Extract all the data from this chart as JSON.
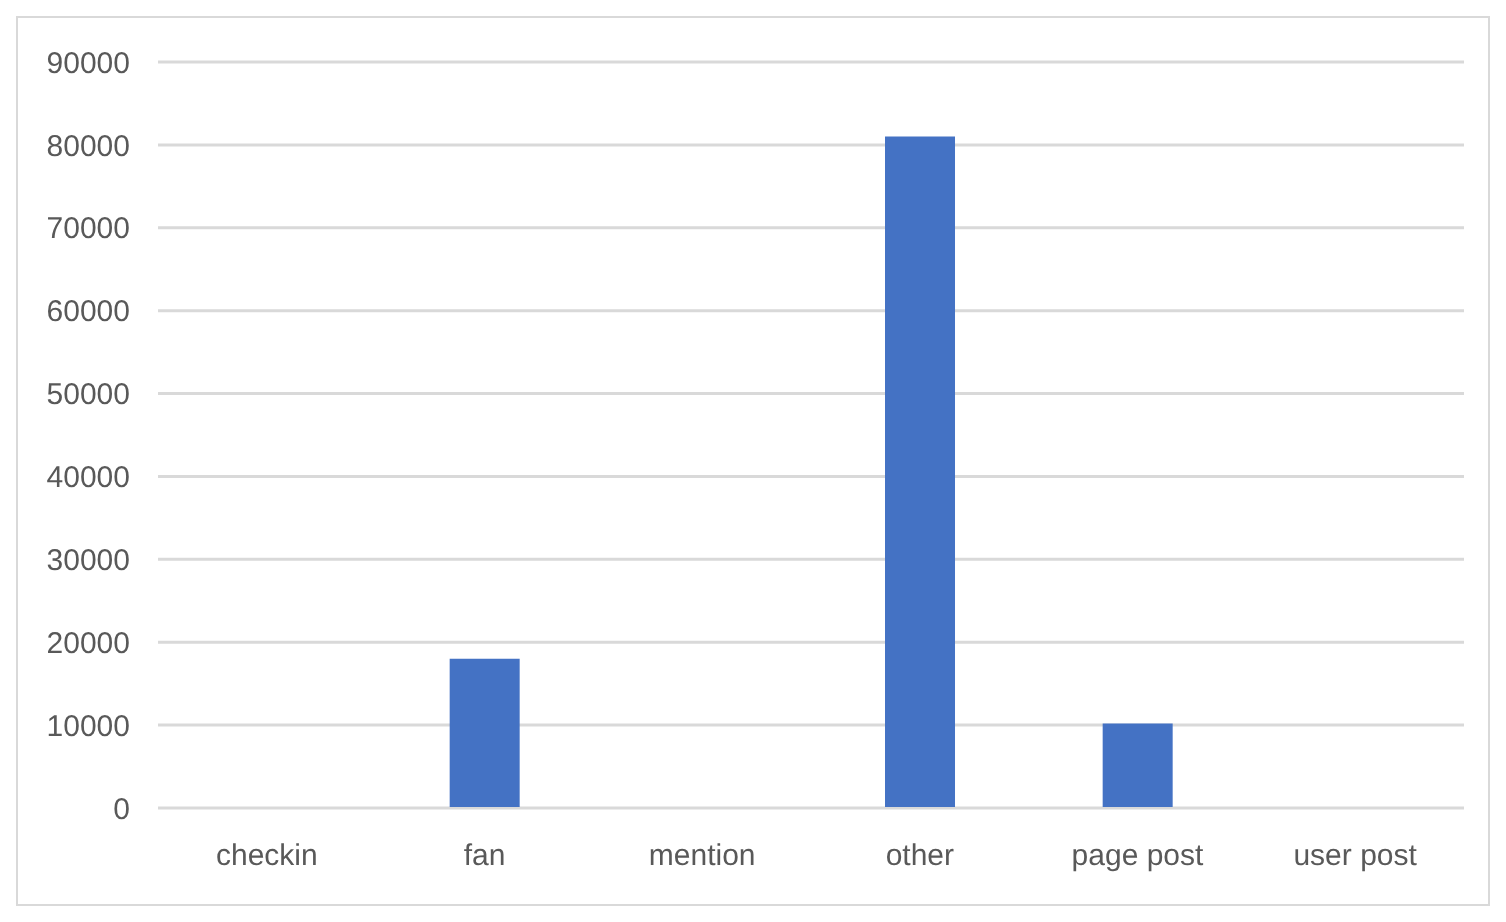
{
  "chart_data": {
    "type": "bar",
    "categories": [
      "checkin",
      "fan",
      "mention",
      "other",
      "page post",
      "user post"
    ],
    "values": [
      0,
      18000,
      0,
      81000,
      10200,
      0
    ],
    "color": "#4472c4",
    "ylim": [
      0,
      90000
    ],
    "yticks": [
      0,
      10000,
      20000,
      30000,
      40000,
      50000,
      60000,
      70000,
      80000,
      90000
    ],
    "grid": "y"
  }
}
